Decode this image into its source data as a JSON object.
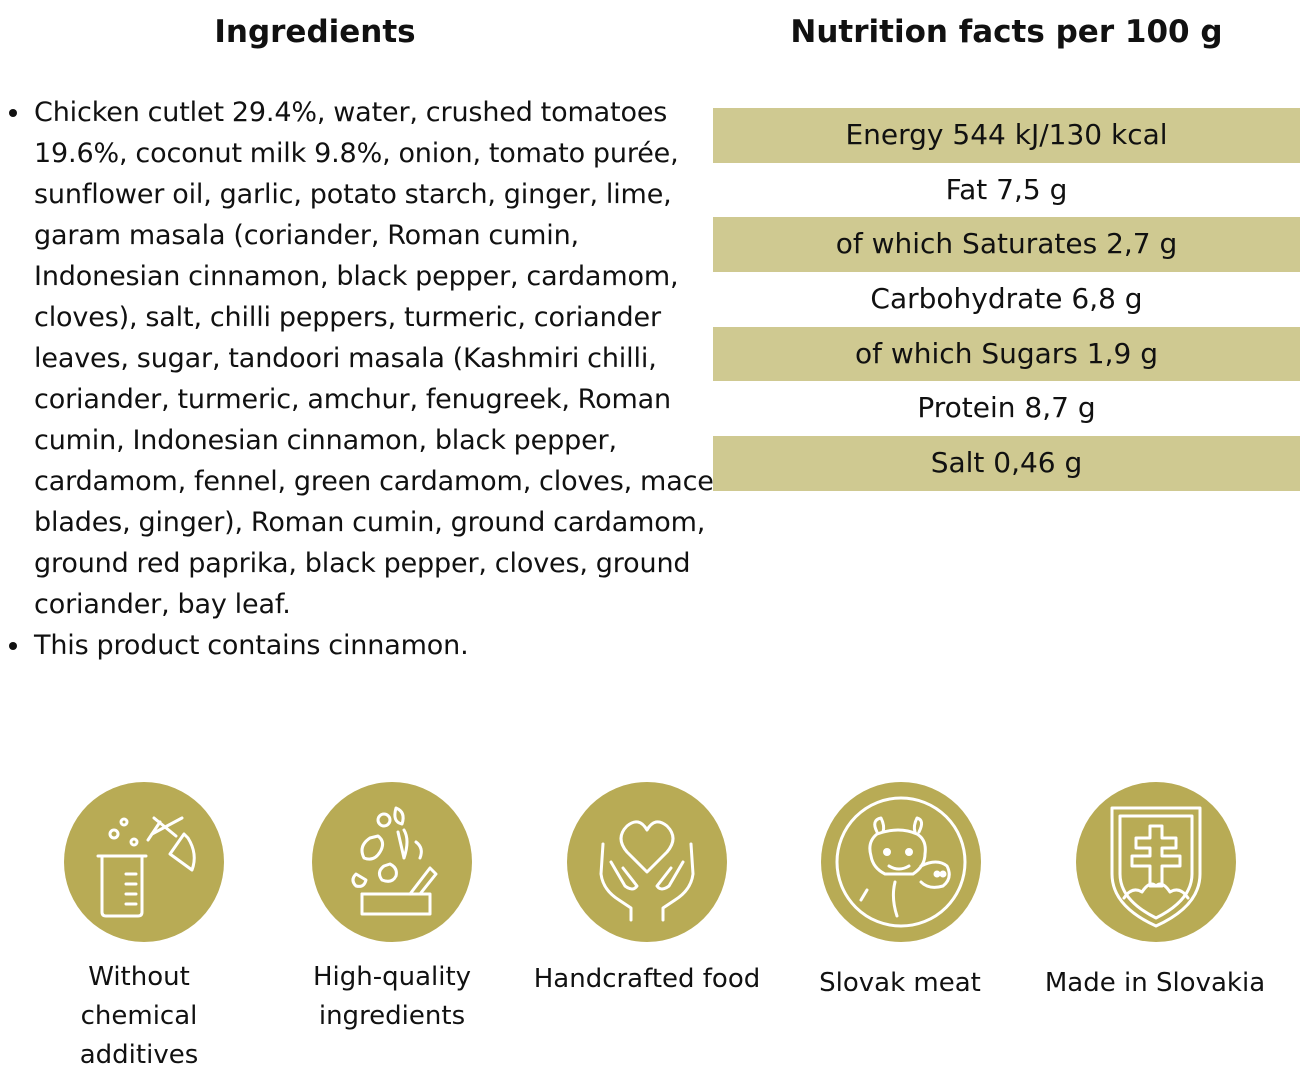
{
  "ingredients": {
    "title": "Ingredients",
    "items": [
      "Chicken cutlet 29.4%, water, crushed tomatoes 19.6%, coconut milk 9.8%, onion, tomato purée, sunflower oil, garlic, potato starch, ginger, lime, garam masala (coriander, Roman cumin, Indonesian cinnamon, black pepper, cardamom, cloves), salt, chilli peppers, turmeric, coriander leaves, sugar, tandoori masala (Kashmiri chilli, coriander, turmeric, amchur, fenugreek, Roman cumin, Indonesian cinnamon, black pepper, cardamom, fennel, green cardamom, cloves, mace blades, ginger), Roman cumin, ground cardamom, ground red paprika, black pepper, cloves, ground coriander, bay leaf.",
      "This product contains cinnamon."
    ]
  },
  "nutrition": {
    "title": "Nutrition facts per 100 g",
    "rows": [
      "Energy 544 kJ/130 kcal",
      "Fat 7,5 g",
      "of which Saturates 2,7 g",
      "Carbohydrate 6,8 g",
      "of which Sugars 1,9 g",
      "Protein 8,7 g",
      "Salt 0,46 g"
    ]
  },
  "badges": [
    {
      "icon": "chemistry-flask-icon",
      "label": "Without chemical additives"
    },
    {
      "icon": "vegetables-box-icon",
      "label": "High-quality ingredients"
    },
    {
      "icon": "heart-hands-icon",
      "label": "Handcrafted food"
    },
    {
      "icon": "pig-cow-icon",
      "label": "Slovak meat"
    },
    {
      "icon": "slovak-coat-of-arms-icon",
      "label": "Made in Slovakia"
    }
  ],
  "colors": {
    "badge": "#b8ab55",
    "table_shade": "#cfc991",
    "text": "#111111"
  }
}
